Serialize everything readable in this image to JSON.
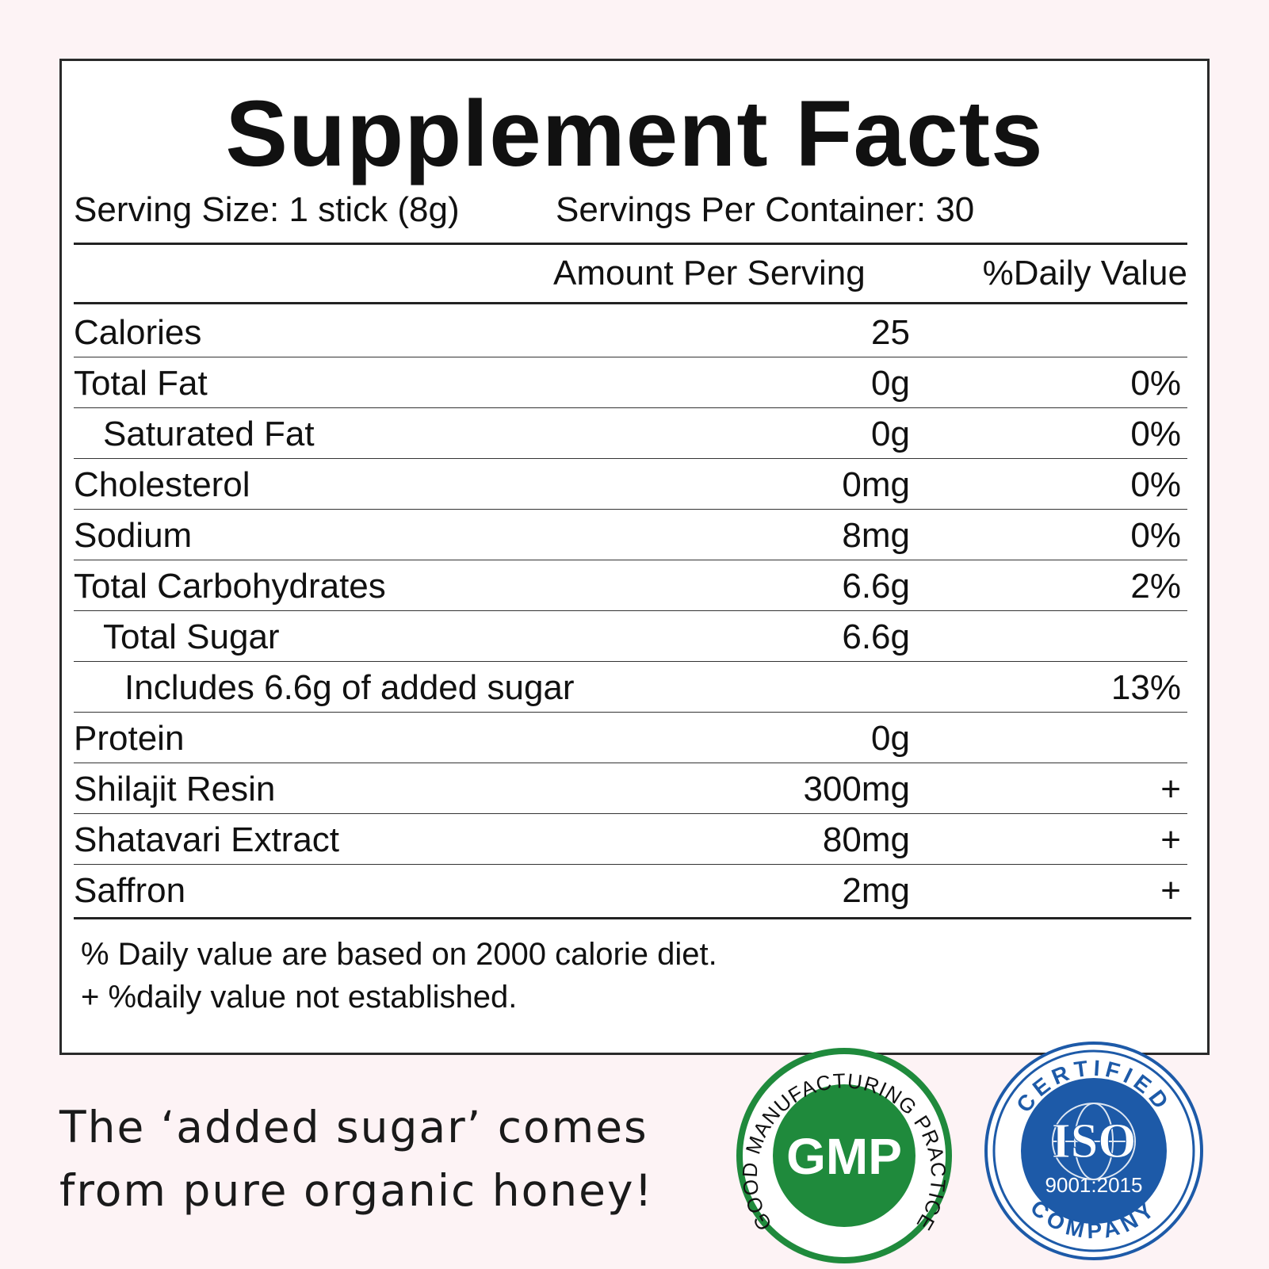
{
  "label": {
    "title": "Supplement Facts",
    "serving_size": "Serving Size: 1 stick (8g)",
    "servings_per_container": "Servings Per Container: 30",
    "column_amount": "Amount Per Serving",
    "column_dv": "%Daily Value",
    "rows": [
      {
        "name": "Calories",
        "amount": "25",
        "dv": "",
        "indent": 0
      },
      {
        "name": "Total Fat",
        "amount": "0g",
        "dv": "0%",
        "indent": 0
      },
      {
        "name": "Saturated Fat",
        "amount": "0g",
        "dv": "0%",
        "indent": 1
      },
      {
        "name": "Cholesterol",
        "amount": "0mg",
        "dv": "0%",
        "indent": 0
      },
      {
        "name": "Sodium",
        "amount": "8mg",
        "dv": "0%",
        "indent": 0
      },
      {
        "name": "Total Carbohydrates",
        "amount": "6.6g",
        "dv": "2%",
        "indent": 0
      },
      {
        "name": "Total Sugar",
        "amount": "6.6g",
        "dv": "",
        "indent": 1
      },
      {
        "name": "Includes 6.6g of added sugar",
        "amount": "",
        "dv": "13%",
        "indent": 2
      },
      {
        "name": "Protein",
        "amount": "0g",
        "dv": "",
        "indent": 0
      },
      {
        "name": "Shilajit Resin",
        "amount": "300mg",
        "dv": "+",
        "indent": 0
      },
      {
        "name": "Shatavari Extract",
        "amount": "80mg",
        "dv": "+",
        "indent": 0
      },
      {
        "name": "Saffron",
        "amount": "2mg",
        "dv": "+",
        "indent": 0
      }
    ],
    "footnote_1": "% Daily value are based on 2000 calorie diet.",
    "footnote_2": "+ %daily value not established."
  },
  "tagline": {
    "line_1": "The ‘added sugar’ comes",
    "line_2": "from pure organic honey!"
  },
  "badges": {
    "gmp": {
      "ring_text": "GOOD MANUFACTURING PRACTICE",
      "center_text": "GMP",
      "color": "#1f8a3c"
    },
    "iso": {
      "top_text": "CERTIFIED",
      "bottom_text": "COMPANY",
      "center_text": "ISO",
      "standard": "9001:2015",
      "color": "#1d5aa8"
    }
  }
}
